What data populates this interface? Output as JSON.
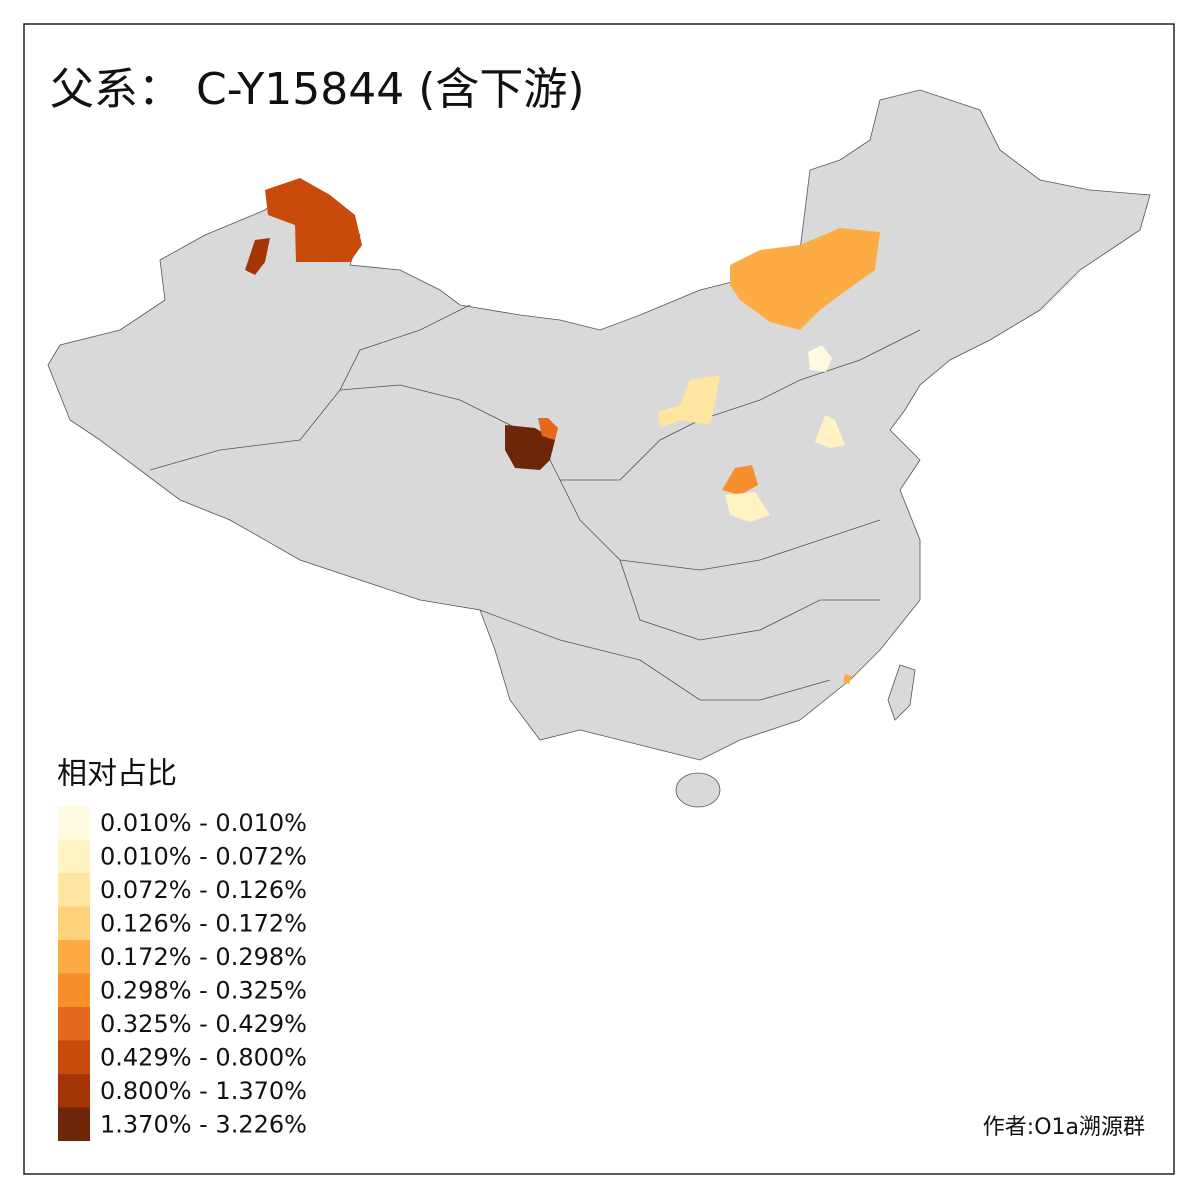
{
  "title": "父系： C-Y15844 (含下游)",
  "legend": {
    "title": "相对占比",
    "items": [
      {
        "label": "0.010% - 0.010%",
        "color": "#fffbe0"
      },
      {
        "label": "0.010% - 0.072%",
        "color": "#fff3c4"
      },
      {
        "label": "0.072% - 0.126%",
        "color": "#fee6a0"
      },
      {
        "label": "0.126% - 0.172%",
        "color": "#fed27a"
      },
      {
        "label": "0.172% - 0.298%",
        "color": "#fcac42"
      },
      {
        "label": "0.298% - 0.325%",
        "color": "#f68f2c"
      },
      {
        "label": "0.325% - 0.429%",
        "color": "#e5691c"
      },
      {
        "label": "0.429% - 0.800%",
        "color": "#c94b0b"
      },
      {
        "label": "0.800% - 1.370%",
        "color": "#a33506"
      },
      {
        "label": "1.370% - 3.226%",
        "color": "#6e2609"
      }
    ]
  },
  "credit": "作者:O1a溯源群"
}
